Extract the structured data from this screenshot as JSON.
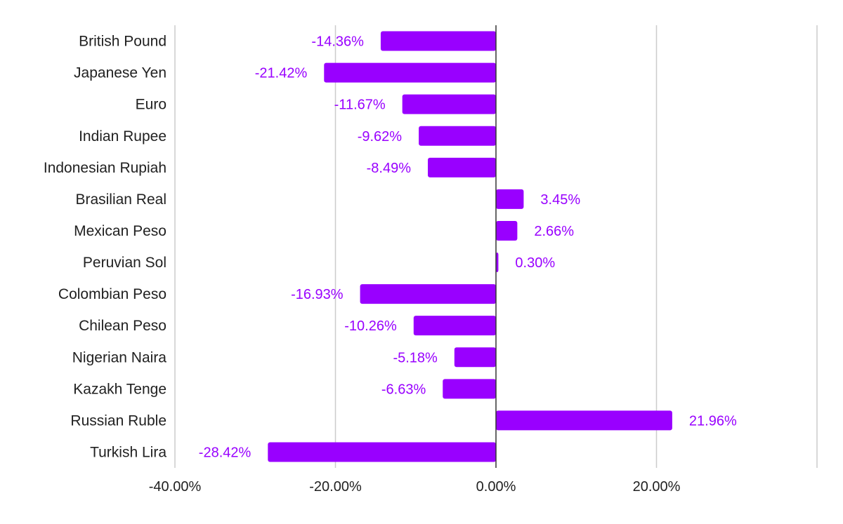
{
  "chart_data": {
    "type": "bar",
    "orientation": "horizontal",
    "categories": [
      "British Pound",
      "Japanese Yen",
      "Euro",
      "Indian Rupee",
      "Indonesian Rupiah",
      "Brasilian Real",
      "Mexican Peso",
      "Peruvian Sol",
      "Colombian Peso",
      "Chilean Peso",
      "Nigerian Naira",
      "Kazakh Tenge",
      "Russian Ruble",
      "Turkish Lira"
    ],
    "values": [
      -14.36,
      -21.42,
      -11.67,
      -9.62,
      -8.49,
      3.45,
      2.66,
      0.3,
      -16.93,
      -10.26,
      -5.18,
      -6.63,
      21.96,
      -28.42
    ],
    "data_labels": [
      "-14.36%",
      "-21.42%",
      "-11.67%",
      "-9.62%",
      "-8.49%",
      "3.45%",
      "2.66%",
      "0.30%",
      "-16.93%",
      "-10.26%",
      "-5.18%",
      "-6.63%",
      "21.96%",
      "-28.42%"
    ],
    "title": "",
    "xlabel": "",
    "ylabel": "",
    "xlim": [
      -40,
      40
    ],
    "x_ticks": [
      -40,
      -20,
      0,
      20,
      40
    ],
    "x_tick_labels": [
      "-40.00%",
      "-20.00%",
      "0.00%",
      "20.00%",
      ""
    ],
    "grid": true,
    "legend": "none",
    "colors": {
      "bar": "#9900ff",
      "label": "#9900ff",
      "category_text": "#212121",
      "tick_text": "#212121",
      "grid": "#cccccc",
      "zero_line": "#333333"
    }
  }
}
